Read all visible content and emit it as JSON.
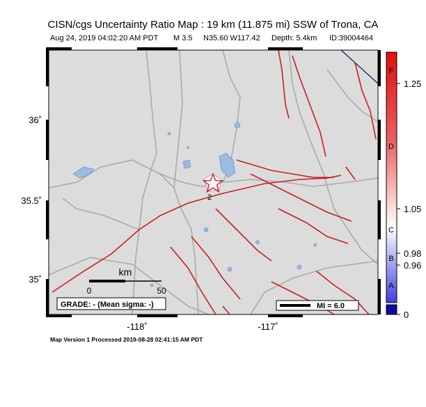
{
  "header": {
    "title": "CISN/cgs Uncertainty Ratio Map : 19 km (11.875 mi) SSW of Trona, CA",
    "info": [
      "Aug 24, 2019 04:02:20 AM PDT",
      "M 3.5",
      "N35.60 W117.42",
      "Depth: 5.4km",
      "ID:39004464"
    ]
  },
  "map": {
    "lat_labels": [
      "36˚",
      "35.5˚",
      "35˚"
    ],
    "lon_labels": [
      "-118˚",
      "-117˚"
    ],
    "scale_title": "km",
    "scale_labels": [
      "0",
      "50"
    ],
    "grade": "GRADE: - (Mean sigma: -)",
    "mi_legend": "MI = 6.0",
    "contour_label": "2"
  },
  "colorbar": {
    "ticks": [
      1.25,
      1.05,
      0.98,
      0.96,
      0
    ],
    "grades": [
      "F",
      "D",
      "C",
      "B",
      "A"
    ]
  },
  "footer": "Map Version 1 Processed 2019-08-28 02:41:15 AM PDT"
}
